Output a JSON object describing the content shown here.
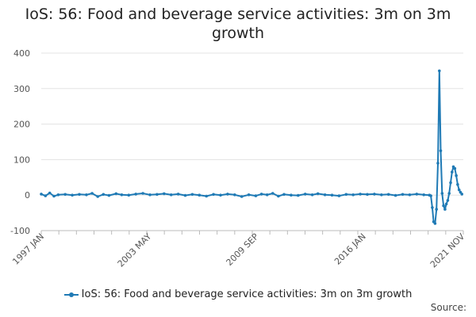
{
  "chart_data": {
    "type": "line",
    "title": "IoS: 56: Food and beverage service activities: 3m on 3m growth",
    "xlabel": "",
    "ylabel": "",
    "ylim": [
      -100,
      400
    ],
    "yticks": [
      "-100",
      "0",
      "100",
      "200",
      "300",
      "400"
    ],
    "xrange": [
      "1997-01",
      "2021-12"
    ],
    "xtick_labels": [
      {
        "date": "1997-01",
        "label": "1997 JAN"
      },
      {
        "date": "2003-05",
        "label": "2003 MAY"
      },
      {
        "date": "2009-09",
        "label": "2009 SEP"
      },
      {
        "date": "2016-01",
        "label": "2016 JAN"
      },
      {
        "date": "2021-11",
        "label": "2021 NOV"
      }
    ],
    "grid": true,
    "legend_position": "bottom",
    "series": [
      {
        "name": "IoS: 56: Food and beverage service activities: 3m on 3m growth",
        "color": "#1f7ab5",
        "points": [
          [
            "1997-01",
            3
          ],
          [
            "1997-04",
            -2
          ],
          [
            "1997-07",
            6
          ],
          [
            "1997-10",
            -3
          ],
          [
            "1998-01",
            1
          ],
          [
            "1998-06",
            2
          ],
          [
            "1998-11",
            0
          ],
          [
            "1999-04",
            2
          ],
          [
            "1999-09",
            1
          ],
          [
            "2000-01",
            5
          ],
          [
            "2000-05",
            -4
          ],
          [
            "2000-09",
            2
          ],
          [
            "2001-01",
            -1
          ],
          [
            "2001-06",
            4
          ],
          [
            "2001-10",
            1
          ],
          [
            "2002-03",
            0
          ],
          [
            "2002-08",
            3
          ],
          [
            "2003-01",
            5
          ],
          [
            "2003-06",
            1
          ],
          [
            "2003-11",
            2
          ],
          [
            "2004-04",
            4
          ],
          [
            "2004-09",
            1
          ],
          [
            "2005-02",
            3
          ],
          [
            "2005-07",
            -1
          ],
          [
            "2005-12",
            2
          ],
          [
            "2006-05",
            0
          ],
          [
            "2006-10",
            -3
          ],
          [
            "2007-03",
            2
          ],
          [
            "2007-08",
            0
          ],
          [
            "2008-01",
            3
          ],
          [
            "2008-06",
            1
          ],
          [
            "2008-11",
            -4
          ],
          [
            "2009-04",
            1
          ],
          [
            "2009-09",
            -2
          ],
          [
            "2010-01",
            3
          ],
          [
            "2010-05",
            1
          ],
          [
            "2010-09",
            5
          ],
          [
            "2011-01",
            -3
          ],
          [
            "2011-05",
            2
          ],
          [
            "2011-10",
            0
          ],
          [
            "2012-03",
            -1
          ],
          [
            "2012-08",
            3
          ],
          [
            "2013-01",
            1
          ],
          [
            "2013-05",
            4
          ],
          [
            "2013-10",
            1
          ],
          [
            "2014-03",
            0
          ],
          [
            "2014-08",
            -2
          ],
          [
            "2015-01",
            2
          ],
          [
            "2015-06",
            1
          ],
          [
            "2015-11",
            3
          ],
          [
            "2016-04",
            2
          ],
          [
            "2016-09",
            3
          ],
          [
            "2017-02",
            1
          ],
          [
            "2017-07",
            2
          ],
          [
            "2017-12",
            -1
          ],
          [
            "2018-05",
            2
          ],
          [
            "2018-10",
            1
          ],
          [
            "2019-03",
            3
          ],
          [
            "2019-08",
            1
          ],
          [
            "2019-12",
            0
          ],
          [
            "2020-01",
            -2
          ],
          [
            "2020-02",
            -35
          ],
          [
            "2020-03",
            -75
          ],
          [
            "2020-04",
            -80
          ],
          [
            "2020-05",
            -40
          ],
          [
            "2020-06",
            90
          ],
          [
            "2020-07",
            350
          ],
          [
            "2020-08",
            125
          ],
          [
            "2020-09",
            5
          ],
          [
            "2020-10",
            -30
          ],
          [
            "2020-11",
            -40
          ],
          [
            "2020-12",
            -25
          ],
          [
            "2021-01",
            -15
          ],
          [
            "2021-02",
            5
          ],
          [
            "2021-03",
            35
          ],
          [
            "2021-04",
            65
          ],
          [
            "2021-05",
            80
          ],
          [
            "2021-06",
            75
          ],
          [
            "2021-07",
            55
          ],
          [
            "2021-08",
            30
          ],
          [
            "2021-09",
            15
          ],
          [
            "2021-10",
            8
          ],
          [
            "2021-11",
            3
          ]
        ]
      }
    ]
  },
  "source_label": "Source:"
}
